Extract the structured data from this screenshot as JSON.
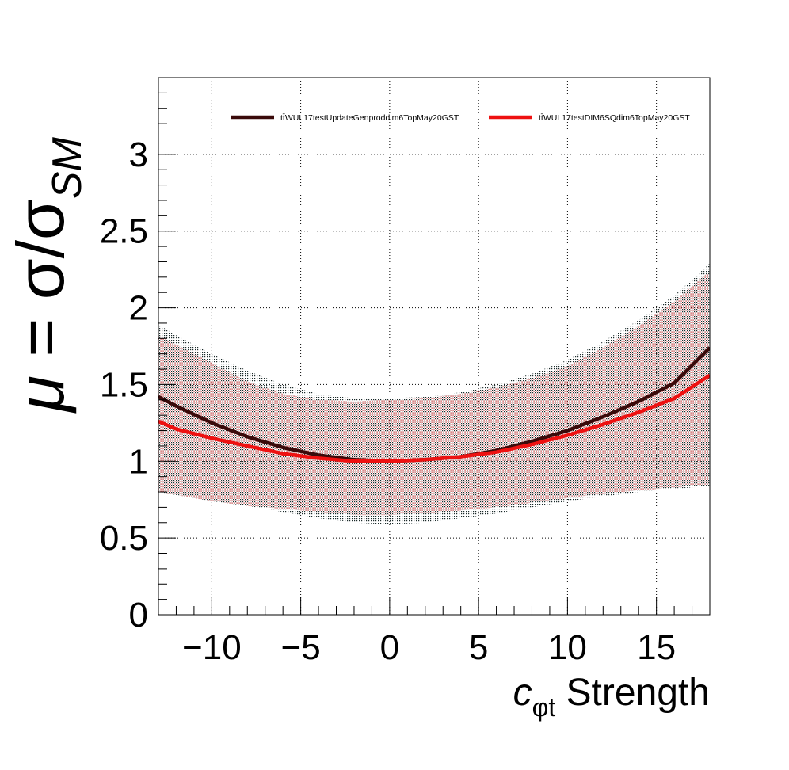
{
  "chart_data": {
    "type": "line",
    "title": "",
    "xlabel": {
      "main": "c",
      "sub": "φt",
      "rest": " Strength"
    },
    "ylabel": {
      "mu": "μ",
      "eq": " = σ/σ",
      "sub": "SM"
    },
    "xlim": [
      -13,
      18
    ],
    "ylim": [
      0,
      3.5
    ],
    "x_ticks": [
      -10,
      -5,
      0,
      5,
      10,
      15
    ],
    "x_tick_labels": [
      "−10",
      "−5",
      "0",
      "5",
      "10",
      "15"
    ],
    "y_ticks": [
      0,
      0.5,
      1,
      1.5,
      2,
      2.5,
      3
    ],
    "y_tick_labels": [
      "0",
      "0.5",
      "1",
      "1.5",
      "2",
      "2.5",
      "3"
    ],
    "grid": true,
    "legend_position": "top",
    "series": [
      {
        "name": "tt̄WUL17testUpdateGenproddim6TopMay20GST",
        "color": "#3a0a0a",
        "x": [
          -13,
          -12,
          -10,
          -8,
          -6,
          -4,
          -2,
          0,
          2,
          4,
          6,
          8,
          10,
          12,
          14,
          16,
          18
        ],
        "y": [
          1.42,
          1.36,
          1.25,
          1.16,
          1.09,
          1.04,
          1.01,
          1.0,
          1.01,
          1.03,
          1.07,
          1.13,
          1.2,
          1.29,
          1.39,
          1.51,
          1.74
        ],
        "band_lower": [
          0.8,
          0.78,
          0.74,
          0.71,
          0.67,
          0.63,
          0.6,
          0.59,
          0.6,
          0.63,
          0.66,
          0.7,
          0.74,
          0.77,
          0.8,
          0.82,
          0.84
        ],
        "band_upper": [
          1.89,
          1.82,
          1.7,
          1.59,
          1.5,
          1.44,
          1.41,
          1.41,
          1.42,
          1.45,
          1.5,
          1.57,
          1.66,
          1.78,
          1.92,
          2.08,
          2.29
        ]
      },
      {
        "name": "tt̄WUL17testDIM6SQdim6TopMay20GST",
        "color": "#ee1111",
        "x": [
          -13,
          -12,
          -10,
          -8,
          -6,
          -4,
          -2,
          0,
          2,
          4,
          6,
          8,
          10,
          12,
          14,
          16,
          18
        ],
        "y": [
          1.26,
          1.21,
          1.15,
          1.1,
          1.05,
          1.02,
          1.0,
          1.0,
          1.01,
          1.03,
          1.06,
          1.11,
          1.17,
          1.24,
          1.32,
          1.41,
          1.56
        ],
        "band_lower": [
          0.8,
          0.78,
          0.74,
          0.71,
          0.69,
          0.67,
          0.65,
          0.65,
          0.66,
          0.68,
          0.7,
          0.73,
          0.76,
          0.79,
          0.81,
          0.83,
          0.85
        ],
        "band_upper": [
          1.82,
          1.76,
          1.64,
          1.52,
          1.44,
          1.4,
          1.39,
          1.4,
          1.41,
          1.44,
          1.48,
          1.54,
          1.62,
          1.74,
          1.88,
          2.04,
          2.24
        ]
      }
    ]
  }
}
